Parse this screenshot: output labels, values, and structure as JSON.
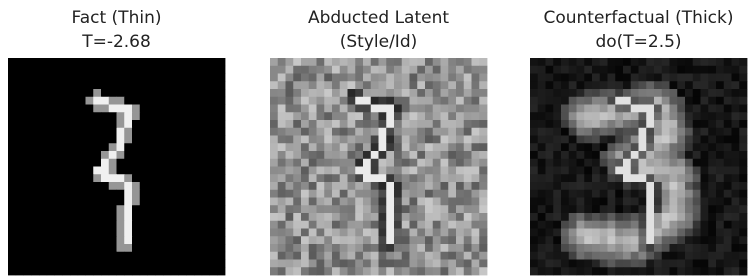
{
  "panels": [
    {
      "title": [
        "Fact (Thin)",
        "T=-2.68"
      ]
    },
    {
      "title": [
        "Abducted Latent",
        "(Style/Id)"
      ]
    },
    {
      "title": [
        "Counterfactual (Thick)",
        "do(T=2.5)"
      ]
    }
  ]
}
